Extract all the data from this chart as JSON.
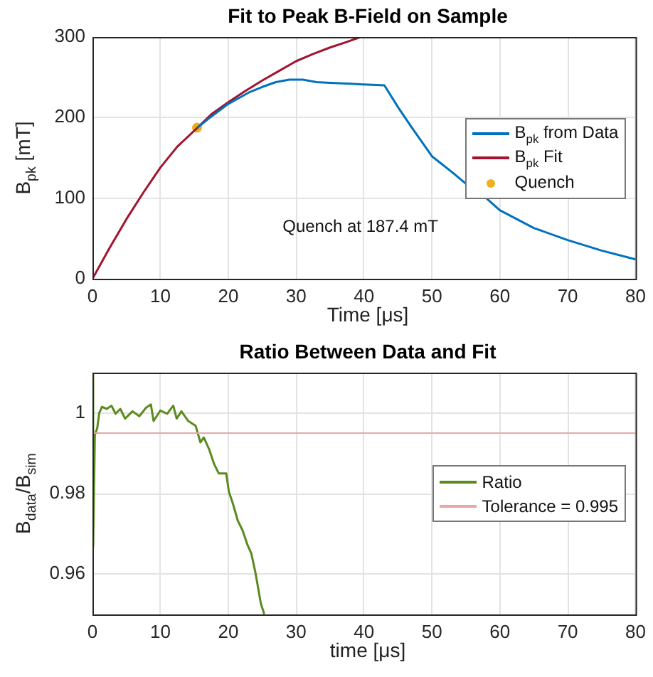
{
  "chart_data": [
    {
      "type": "line",
      "title": "Fit to Peak B-Field on Sample",
      "xlabel": "Time [μs]",
      "ylabel": "B$_{pk}$ [mT]",
      "xlim": [
        0,
        80
      ],
      "ylim": [
        0,
        300
      ],
      "xticks": [
        0,
        10,
        20,
        30,
        40,
        50,
        60,
        70,
        80
      ],
      "yticks": [
        0,
        100,
        200,
        300
      ],
      "grid": true,
      "legend": "right",
      "annotations": [
        "Quench at 187.4 mT"
      ],
      "series": [
        {
          "name": "B$_{pk}$ from Data",
          "color": "#0072bd",
          "marker": "none",
          "x": [
            15.4,
            17,
            20,
            23,
            25,
            27,
            29,
            30,
            31,
            33,
            35,
            38,
            40,
            43,
            45,
            47,
            50,
            53,
            55,
            58,
            60,
            65,
            70,
            75,
            80
          ],
          "values": [
            187,
            198,
            217,
            231,
            238,
            244,
            247,
            247,
            247,
            244,
            243,
            242,
            241,
            240,
            213,
            188,
            152,
            132,
            118,
            100,
            85,
            63,
            48,
            35,
            24
          ]
        },
        {
          "name": "B$_{pk}$ Fit",
          "color": "#a2142f",
          "marker": "none",
          "x": [
            0,
            2.5,
            5,
            7.5,
            10,
            12.5,
            15.4,
            17.5,
            20,
            22.5,
            25,
            27.5,
            30,
            32.5,
            35,
            37.5,
            39.5
          ],
          "values": [
            0,
            38,
            74,
            107,
            138,
            164,
            187,
            204,
            219,
            233,
            246,
            258,
            270,
            279,
            287,
            294,
            300
          ]
        },
        {
          "name": "Quench",
          "type": "scatter",
          "color": "#edb120",
          "marker": "circle",
          "x": [
            15.4
          ],
          "values": [
            187.4
          ]
        }
      ]
    },
    {
      "type": "line",
      "title": "Ratio Between Data and Fit",
      "xlabel": "time [μs]",
      "ylabel": "B$_{data}$/B$_{sim}$",
      "xlim": [
        0,
        80
      ],
      "ylim": [
        0.95,
        1.01
      ],
      "xticks": [
        0,
        10,
        20,
        30,
        40,
        50,
        60,
        70,
        80
      ],
      "yticks": [
        0.96,
        0.98,
        1
      ],
      "grid": true,
      "legend": "right",
      "ref_lines": [
        {
          "axis": "y",
          "value": 0.995,
          "label": "Tolerance = 0.995",
          "color": "#e8a8a8"
        }
      ],
      "series": [
        {
          "name": "Ratio",
          "color": "#5b8a1e",
          "marker": "none",
          "x": [
            0,
            0.1,
            0.35,
            0.7,
            1,
            1.4,
            2.1,
            2.8,
            3.4,
            4.1,
            4.8,
            5.9,
            6.9,
            7.9,
            8.6,
            9,
            10,
            11,
            11.9,
            12.4,
            13.1,
            14.1,
            15.2,
            15.9,
            16.4,
            17.2,
            17.9,
            18.6,
            19.7,
            20.1,
            20.7,
            21.4,
            22.1,
            22.8,
            23.4,
            24,
            24.5,
            24.8,
            25.3
          ],
          "values": [
            1.0098,
            0.9668,
            0.9945,
            0.9962,
            1.0,
            1.0015,
            1.001,
            1.0018,
            0.9998,
            1.001,
            0.9986,
            1.0004,
            0.9992,
            1.0013,
            1.0021,
            0.998,
            1.0006,
            0.9998,
            1.0018,
            0.9986,
            1.0004,
            0.998,
            0.9968,
            0.9927,
            0.9939,
            0.9909,
            0.9874,
            0.985,
            0.985,
            0.9804,
            0.9774,
            0.9733,
            0.9709,
            0.9674,
            0.9651,
            0.9604,
            0.9556,
            0.9527,
            0.9501
          ]
        }
      ]
    }
  ]
}
